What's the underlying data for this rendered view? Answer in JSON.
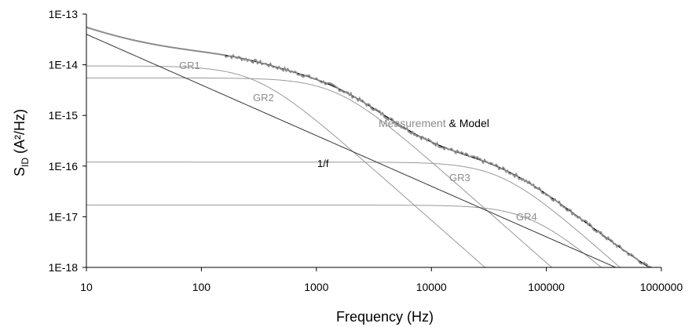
{
  "chart_data": {
    "type": "line",
    "title": "",
    "xlabel": "Frequency (Hz)",
    "ylabel_main": "S",
    "ylabel_sub": "ID",
    "ylabel_unit": " (A²/Hz)",
    "x_scale": "log",
    "y_scale": "log",
    "xlim": [
      10,
      1000000
    ],
    "ylim": [
      1e-18,
      1e-13
    ],
    "grid": false,
    "x_ticks": [
      "10",
      "100",
      "1000",
      "10000",
      "100000",
      "1000000"
    ],
    "x_tick_values": [
      10,
      100,
      1000,
      10000,
      100000,
      1000000
    ],
    "y_ticks": [
      "1E-13",
      "1E-14",
      "1E-15",
      "1E-16",
      "1E-17",
      "1E-18"
    ],
    "y_tick_values": [
      1e-13,
      1e-14,
      1e-15,
      1e-16,
      1e-17,
      1e-18
    ],
    "series": [
      {
        "name": "GR1",
        "kind": "lorentzian",
        "plateau": 9.5e-15,
        "fc": 300,
        "color": "#999999"
      },
      {
        "name": "GR2",
        "kind": "lorentzian",
        "plateau": 5.5e-15,
        "fc": 1500,
        "color": "#999999"
      },
      {
        "name": "GR3",
        "kind": "lorentzian",
        "plateau": 1.2e-16,
        "fc": 40000,
        "color": "#999999"
      },
      {
        "name": "GR4",
        "kind": "lorentzian",
        "plateau": 1.7e-17,
        "fc": 75000,
        "color": "#999999"
      },
      {
        "name": "1/f",
        "kind": "flicker",
        "value_at_10": 4e-14,
        "slope": -1,
        "color": "#333333"
      },
      {
        "name": "Model",
        "kind": "sum",
        "color": "#000000"
      },
      {
        "name": "Measurement",
        "kind": "measured",
        "color": "#8c8c8c"
      }
    ],
    "annotations": {
      "gr1": "GR1",
      "gr2": "GR2",
      "gr3": "GR3",
      "gr4": "GR4",
      "flicker": "1/f",
      "legend_measurement": "Measurement",
      "legend_sep": " & ",
      "legend_model": "Model"
    }
  }
}
